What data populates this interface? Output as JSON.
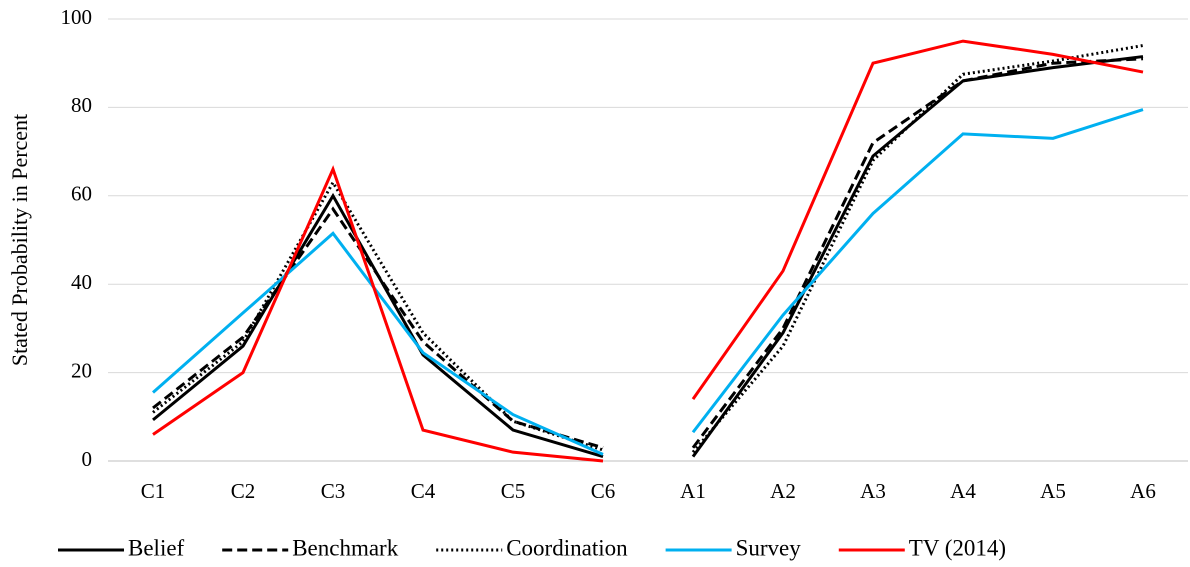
{
  "chart_data": {
    "type": "line",
    "y_label": "Stated Probability in Percent",
    "categories": [
      "C1",
      "C2",
      "C3",
      "C4",
      "C5",
      "C6",
      "A1",
      "A2",
      "A3",
      "A4",
      "A5",
      "A6"
    ],
    "segment_starts": [
      0,
      6
    ],
    "series": [
      {
        "name": "Belief",
        "color": "#000000",
        "dash": "solid",
        "values": [
          9.3,
          26,
          60,
          24,
          7,
          1,
          1,
          29,
          69,
          86,
          89,
          91.5
        ]
      },
      {
        "name": "Benchmark",
        "color": "#000000",
        "dash": "dashed",
        "values": [
          12,
          28,
          57,
          27,
          9,
          3,
          3,
          30,
          72,
          86,
          90,
          91
        ]
      },
      {
        "name": "Coordination",
        "color": "#000000",
        "dash": "dotted",
        "values": [
          11,
          27,
          63,
          29,
          9,
          2.5,
          2,
          26,
          68,
          87.5,
          90.5,
          94
        ]
      },
      {
        "name": "Survey",
        "color": "#00b0f0",
        "dash": "solid",
        "values": [
          15.5,
          33.5,
          51.5,
          24.5,
          10.5,
          1.5,
          6.5,
          33,
          56,
          74,
          73,
          79.5
        ]
      },
      {
        "name": "TV (2014)",
        "color": "#ff0000",
        "dash": "solid",
        "values": [
          6,
          20,
          66,
          7,
          2,
          0,
          14,
          43,
          90,
          95,
          92,
          88
        ]
      }
    ],
    "ylim": [
      0,
      100
    ],
    "yticks": [
      0,
      20,
      40,
      60,
      80,
      100
    ],
    "grid": true,
    "legend": "bottom"
  }
}
